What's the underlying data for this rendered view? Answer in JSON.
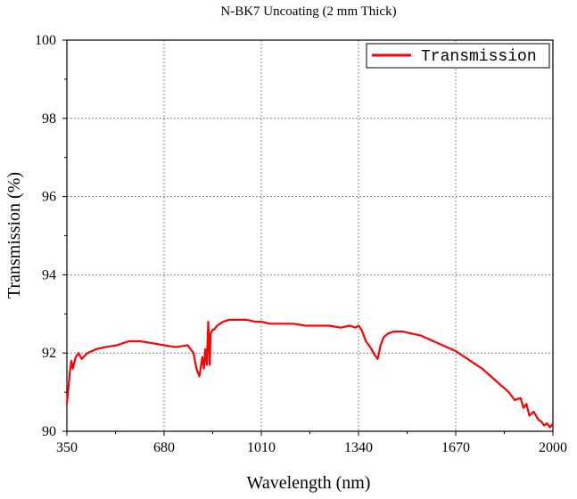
{
  "chart_data": {
    "type": "line",
    "title": "N-BK7 Uncoating (2 mm  Thick)",
    "xlabel": "Wavelength (nm)",
    "ylabel": "Transmission (%)",
    "xlim": [
      350,
      2000
    ],
    "ylim": [
      90,
      100
    ],
    "xticks": [
      350,
      680,
      1010,
      1340,
      1670,
      2000
    ],
    "yticks": [
      90,
      92,
      94,
      96,
      98,
      100
    ],
    "grid": true,
    "legend_position": "top-right",
    "series": [
      {
        "name": "Transmission",
        "color": "#ff0000",
        "x": [
          350,
          355,
          360,
          365,
          370,
          380,
          390,
          400,
          420,
          450,
          480,
          520,
          560,
          600,
          640,
          680,
          720,
          760,
          780,
          790,
          800,
          810,
          815,
          820,
          825,
          830,
          835,
          838,
          842,
          845,
          850,
          860,
          880,
          900,
          930,
          960,
          990,
          1010,
          1040,
          1080,
          1120,
          1160,
          1200,
          1240,
          1280,
          1310,
          1330,
          1340,
          1350,
          1365,
          1380,
          1395,
          1405,
          1415,
          1425,
          1440,
          1460,
          1490,
          1520,
          1550,
          1580,
          1610,
          1640,
          1670,
          1700,
          1730,
          1760,
          1790,
          1820,
          1850,
          1870,
          1890,
          1900,
          1910,
          1920,
          1935,
          1950,
          1960,
          1970,
          1980,
          1990,
          2000
        ],
        "y": [
          90.7,
          91.1,
          91.5,
          91.8,
          91.6,
          91.9,
          92.0,
          91.85,
          92.0,
          92.1,
          92.15,
          92.2,
          92.3,
          92.3,
          92.25,
          92.2,
          92.15,
          92.2,
          92.0,
          91.6,
          91.4,
          91.9,
          91.6,
          92.1,
          91.7,
          92.8,
          91.7,
          92.5,
          92.55,
          92.6,
          92.6,
          92.7,
          92.8,
          92.85,
          92.85,
          92.85,
          92.8,
          92.8,
          92.75,
          92.75,
          92.75,
          92.7,
          92.7,
          92.7,
          92.65,
          92.7,
          92.65,
          92.7,
          92.6,
          92.3,
          92.15,
          91.95,
          91.85,
          92.2,
          92.4,
          92.5,
          92.55,
          92.55,
          92.5,
          92.45,
          92.35,
          92.25,
          92.15,
          92.05,
          91.9,
          91.75,
          91.6,
          91.4,
          91.2,
          91.0,
          90.8,
          90.85,
          90.6,
          90.7,
          90.4,
          90.5,
          90.3,
          90.25,
          90.15,
          90.2,
          90.1,
          90.2
        ]
      }
    ]
  }
}
